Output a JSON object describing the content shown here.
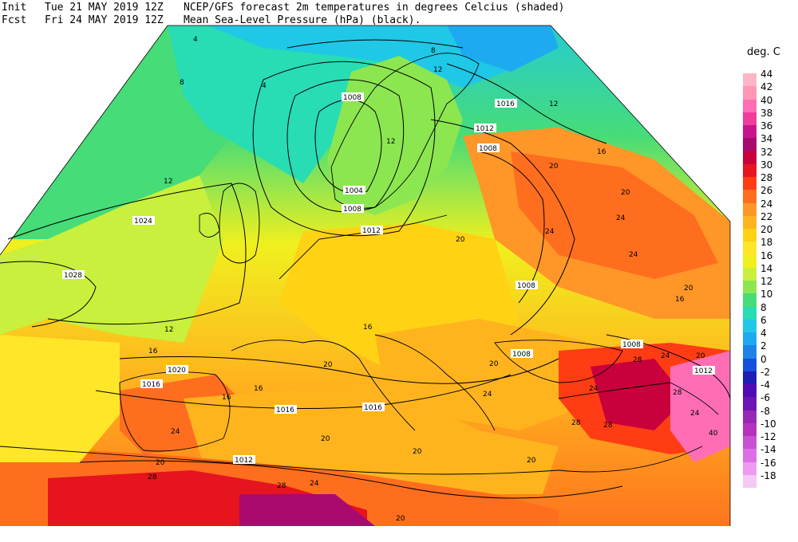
{
  "header": {
    "init_prefix": "Init",
    "init_time": "Tue 21 MAY 2019 12Z",
    "fcst_prefix": "Fcst",
    "fcst_time": "Fri 24 MAY 2019 12Z",
    "title_line1": "NCEP/GFS forecast 2m temperatures in degrees Celcius (shaded)",
    "title_line2": "Mean Sea-Level Pressure (hPa) (black)."
  },
  "legend": {
    "title": "deg. C",
    "entries": [
      {
        "value": "44",
        "color": "#ffb4c8"
      },
      {
        "value": "42",
        "color": "#ff96b4"
      },
      {
        "value": "40",
        "color": "#ff6eb4"
      },
      {
        "value": "38",
        "color": "#f03c9b"
      },
      {
        "value": "36",
        "color": "#c8148c"
      },
      {
        "value": "34",
        "color": "#aa0a6e"
      },
      {
        "value": "32",
        "color": "#c8003c"
      },
      {
        "value": "30",
        "color": "#e6141e"
      },
      {
        "value": "28",
        "color": "#ff3c14"
      },
      {
        "value": "26",
        "color": "#ff6e1e"
      },
      {
        "value": "24",
        "color": "#ff9628"
      },
      {
        "value": "22",
        "color": "#ffb41e"
      },
      {
        "value": "20",
        "color": "#ffd214"
      },
      {
        "value": "18",
        "color": "#ffe628"
      },
      {
        "value": "16",
        "color": "#f0f01e"
      },
      {
        "value": "14",
        "color": "#c8f03c"
      },
      {
        "value": "12",
        "color": "#8ce650"
      },
      {
        "value": "10",
        "color": "#46dc78"
      },
      {
        "value": "8",
        "color": "#28dcb4"
      },
      {
        "value": "6",
        "color": "#1ec8e6"
      },
      {
        "value": "4",
        "color": "#1eaaf0"
      },
      {
        "value": "2",
        "color": "#1e82e6"
      },
      {
        "value": "0",
        "color": "#1450dc"
      },
      {
        "value": "-2",
        "color": "#1e1eb4"
      },
      {
        "value": "-4",
        "color": "#500ab4"
      },
      {
        "value": "-6",
        "color": "#6e14b4"
      },
      {
        "value": "-8",
        "color": "#9628b4"
      },
      {
        "value": "-10",
        "color": "#b432be"
      },
      {
        "value": "-12",
        "color": "#c850d2"
      },
      {
        "value": "-14",
        "color": "#dc6ee6"
      },
      {
        "value": "-16",
        "color": "#ec9cf0"
      },
      {
        "value": "-18",
        "color": "#f5c8f5"
      }
    ]
  },
  "pressure_labels": [
    "1008",
    "1016",
    "1012",
    "1008",
    "1024",
    "1028",
    "1004",
    "1008",
    "1012",
    "1008",
    "1008",
    "1008",
    "1012",
    "1020",
    "1016",
    "1016",
    "1016",
    "1012"
  ],
  "temp_labels": [
    "4",
    "8",
    "4",
    "8",
    "12",
    "12",
    "12",
    "12",
    "16",
    "20",
    "24",
    "20",
    "24",
    "24",
    "20",
    "16",
    "20",
    "24",
    "28",
    "24",
    "28",
    "28",
    "40",
    "24",
    "28",
    "20",
    "20",
    "24",
    "20",
    "16",
    "12",
    "16",
    "20",
    "16",
    "16",
    "20",
    "24",
    "28",
    "28",
    "24",
    "20",
    "20",
    "20"
  ]
}
